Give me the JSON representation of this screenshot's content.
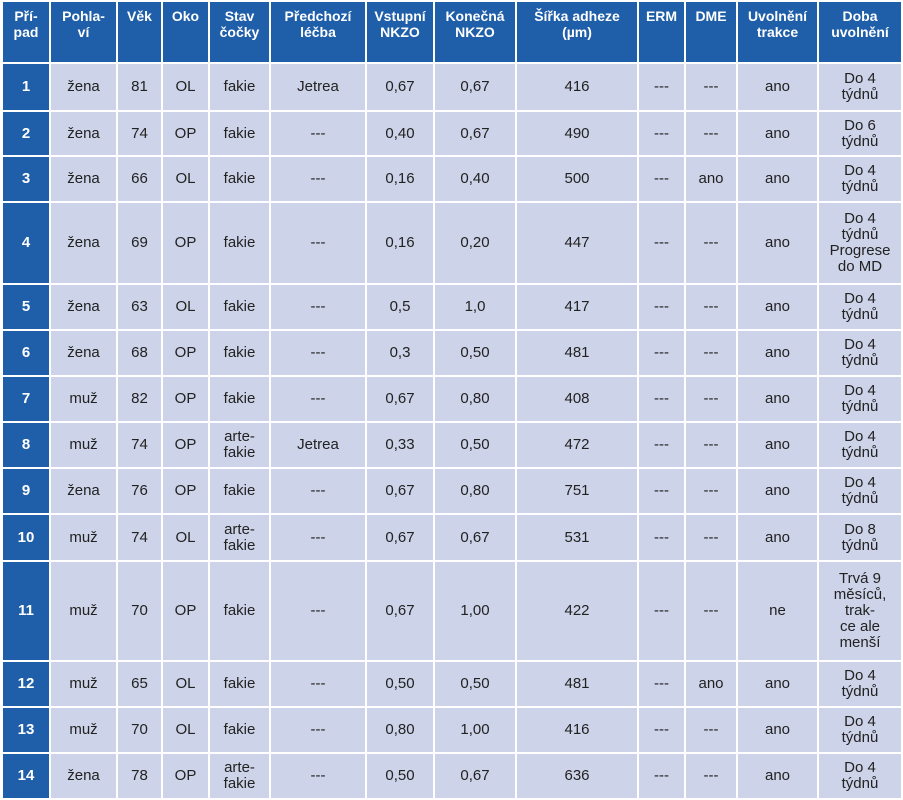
{
  "table": {
    "header": [
      "Pří-\npad",
      "Pohla-\nví",
      "Věk",
      "Oko",
      "Stav\nčočky",
      "Předchozí\nléčba",
      "Vstupní\nNKZO",
      "Konečná\nNKZO",
      "Šířka adheze\n(µm)",
      "ERM",
      "DME",
      "Uvolnění\ntrakce",
      "Doba\nuvolnění"
    ],
    "rows": [
      [
        "1",
        "žena",
        "81",
        "OL",
        "fakie",
        "Jetrea",
        "0,67",
        "0,67",
        "416",
        "---",
        "---",
        "ano",
        "Do 4\ntýdnů"
      ],
      [
        "2",
        "žena",
        "74",
        "OP",
        "fakie",
        "---",
        "0,40",
        "0,67",
        "490",
        "---",
        "---",
        "ano",
        "Do 6\ntýdnů"
      ],
      [
        "3",
        "žena",
        "66",
        "OL",
        "fakie",
        "---",
        "0,16",
        "0,40",
        "500",
        "---",
        "ano",
        "ano",
        "Do 4\ntýdnů"
      ],
      [
        "4",
        "žena",
        "69",
        "OP",
        "fakie",
        "---",
        "0,16",
        "0,20",
        "447",
        "---",
        "---",
        "ano",
        "Do 4\ntýdnů\nProgrese\ndo MD"
      ],
      [
        "5",
        "žena",
        "63",
        "OL",
        "fakie",
        "---",
        "0,5",
        "1,0",
        "417",
        "---",
        "---",
        "ano",
        "Do 4\ntýdnů"
      ],
      [
        "6",
        "žena",
        "68",
        "OP",
        "fakie",
        "---",
        "0,3",
        "0,50",
        "481",
        "---",
        "---",
        "ano",
        "Do 4\ntýdnů"
      ],
      [
        "7",
        "muž",
        "82",
        "OP",
        "fakie",
        "---",
        "0,67",
        "0,80",
        "408",
        "---",
        "---",
        "ano",
        "Do 4\ntýdnů"
      ],
      [
        "8",
        "muž",
        "74",
        "OP",
        "arte-\nfakie",
        "Jetrea",
        "0,33",
        "0,50",
        "472",
        "---",
        "---",
        "ano",
        "Do 4\ntýdnů"
      ],
      [
        "9",
        "žena",
        "76",
        "OP",
        "fakie",
        "---",
        "0,67",
        "0,80",
        "751",
        "---",
        "---",
        "ano",
        "Do 4\ntýdnů"
      ],
      [
        "10",
        "muž",
        "74",
        "OL",
        "arte-\nfakie",
        "---",
        "0,67",
        "0,67",
        "531",
        "---",
        "---",
        "ano",
        "Do 8\ntýdnů"
      ],
      [
        "11",
        "muž",
        "70",
        "OP",
        "fakie",
        "---",
        "0,67",
        "1,00",
        "422",
        "---",
        "---",
        "ne",
        "Trvá 9\nměsíců,\ntrak-\nce ale\nmenší"
      ],
      [
        "12",
        "muž",
        "65",
        "OL",
        "fakie",
        "---",
        "0,50",
        "0,50",
        "481",
        "---",
        "ano",
        "ano",
        "Do 4\ntýdnů"
      ],
      [
        "13",
        "muž",
        "70",
        "OL",
        "fakie",
        "---",
        "0,80",
        "1,00",
        "416",
        "---",
        "---",
        "ano",
        "Do 4\ntýdnů"
      ],
      [
        "14",
        "žena",
        "78",
        "OP",
        "arte-\nfakie",
        "---",
        "0,50",
        "0,67",
        "636",
        "---",
        "---",
        "ano",
        "Do 4\ntýdnů"
      ]
    ]
  }
}
